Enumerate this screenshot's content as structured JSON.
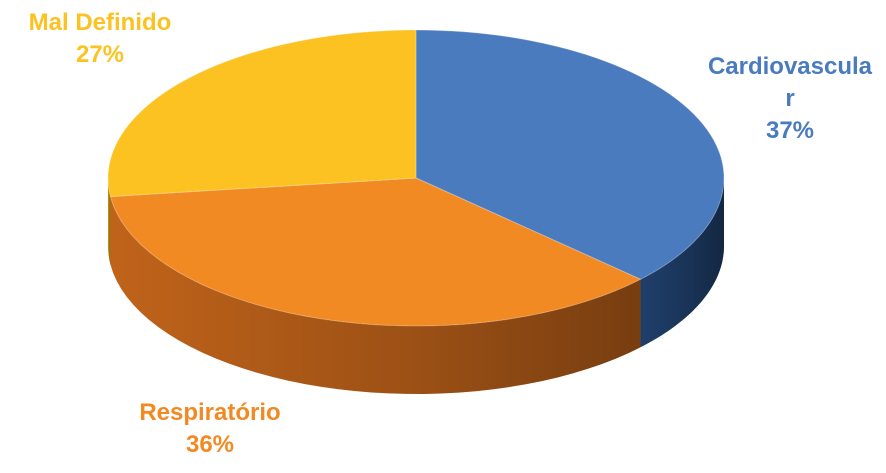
{
  "chart_data": {
    "type": "pie",
    "style": "3d",
    "title": "",
    "slices": [
      {
        "label": "Cardiovascular",
        "label_lines": [
          "Cardiovascula",
          "r"
        ],
        "percent_label": "37%",
        "value": 37,
        "color": "#4a7bbf",
        "side_color": "#1f3f6b"
      },
      {
        "label": "Respiratório",
        "label_lines": [
          "Respiratório"
        ],
        "percent_label": "36%",
        "value": 36,
        "color": "#f28a24",
        "side_color": "#c0631a"
      },
      {
        "label": "Mal Definido",
        "label_lines": [
          "Mal Definido"
        ],
        "percent_label": "27%",
        "value": 27,
        "color": "#fcc222",
        "side_color": "#c99510"
      }
    ],
    "legend": "none",
    "data_labels": "outside"
  }
}
